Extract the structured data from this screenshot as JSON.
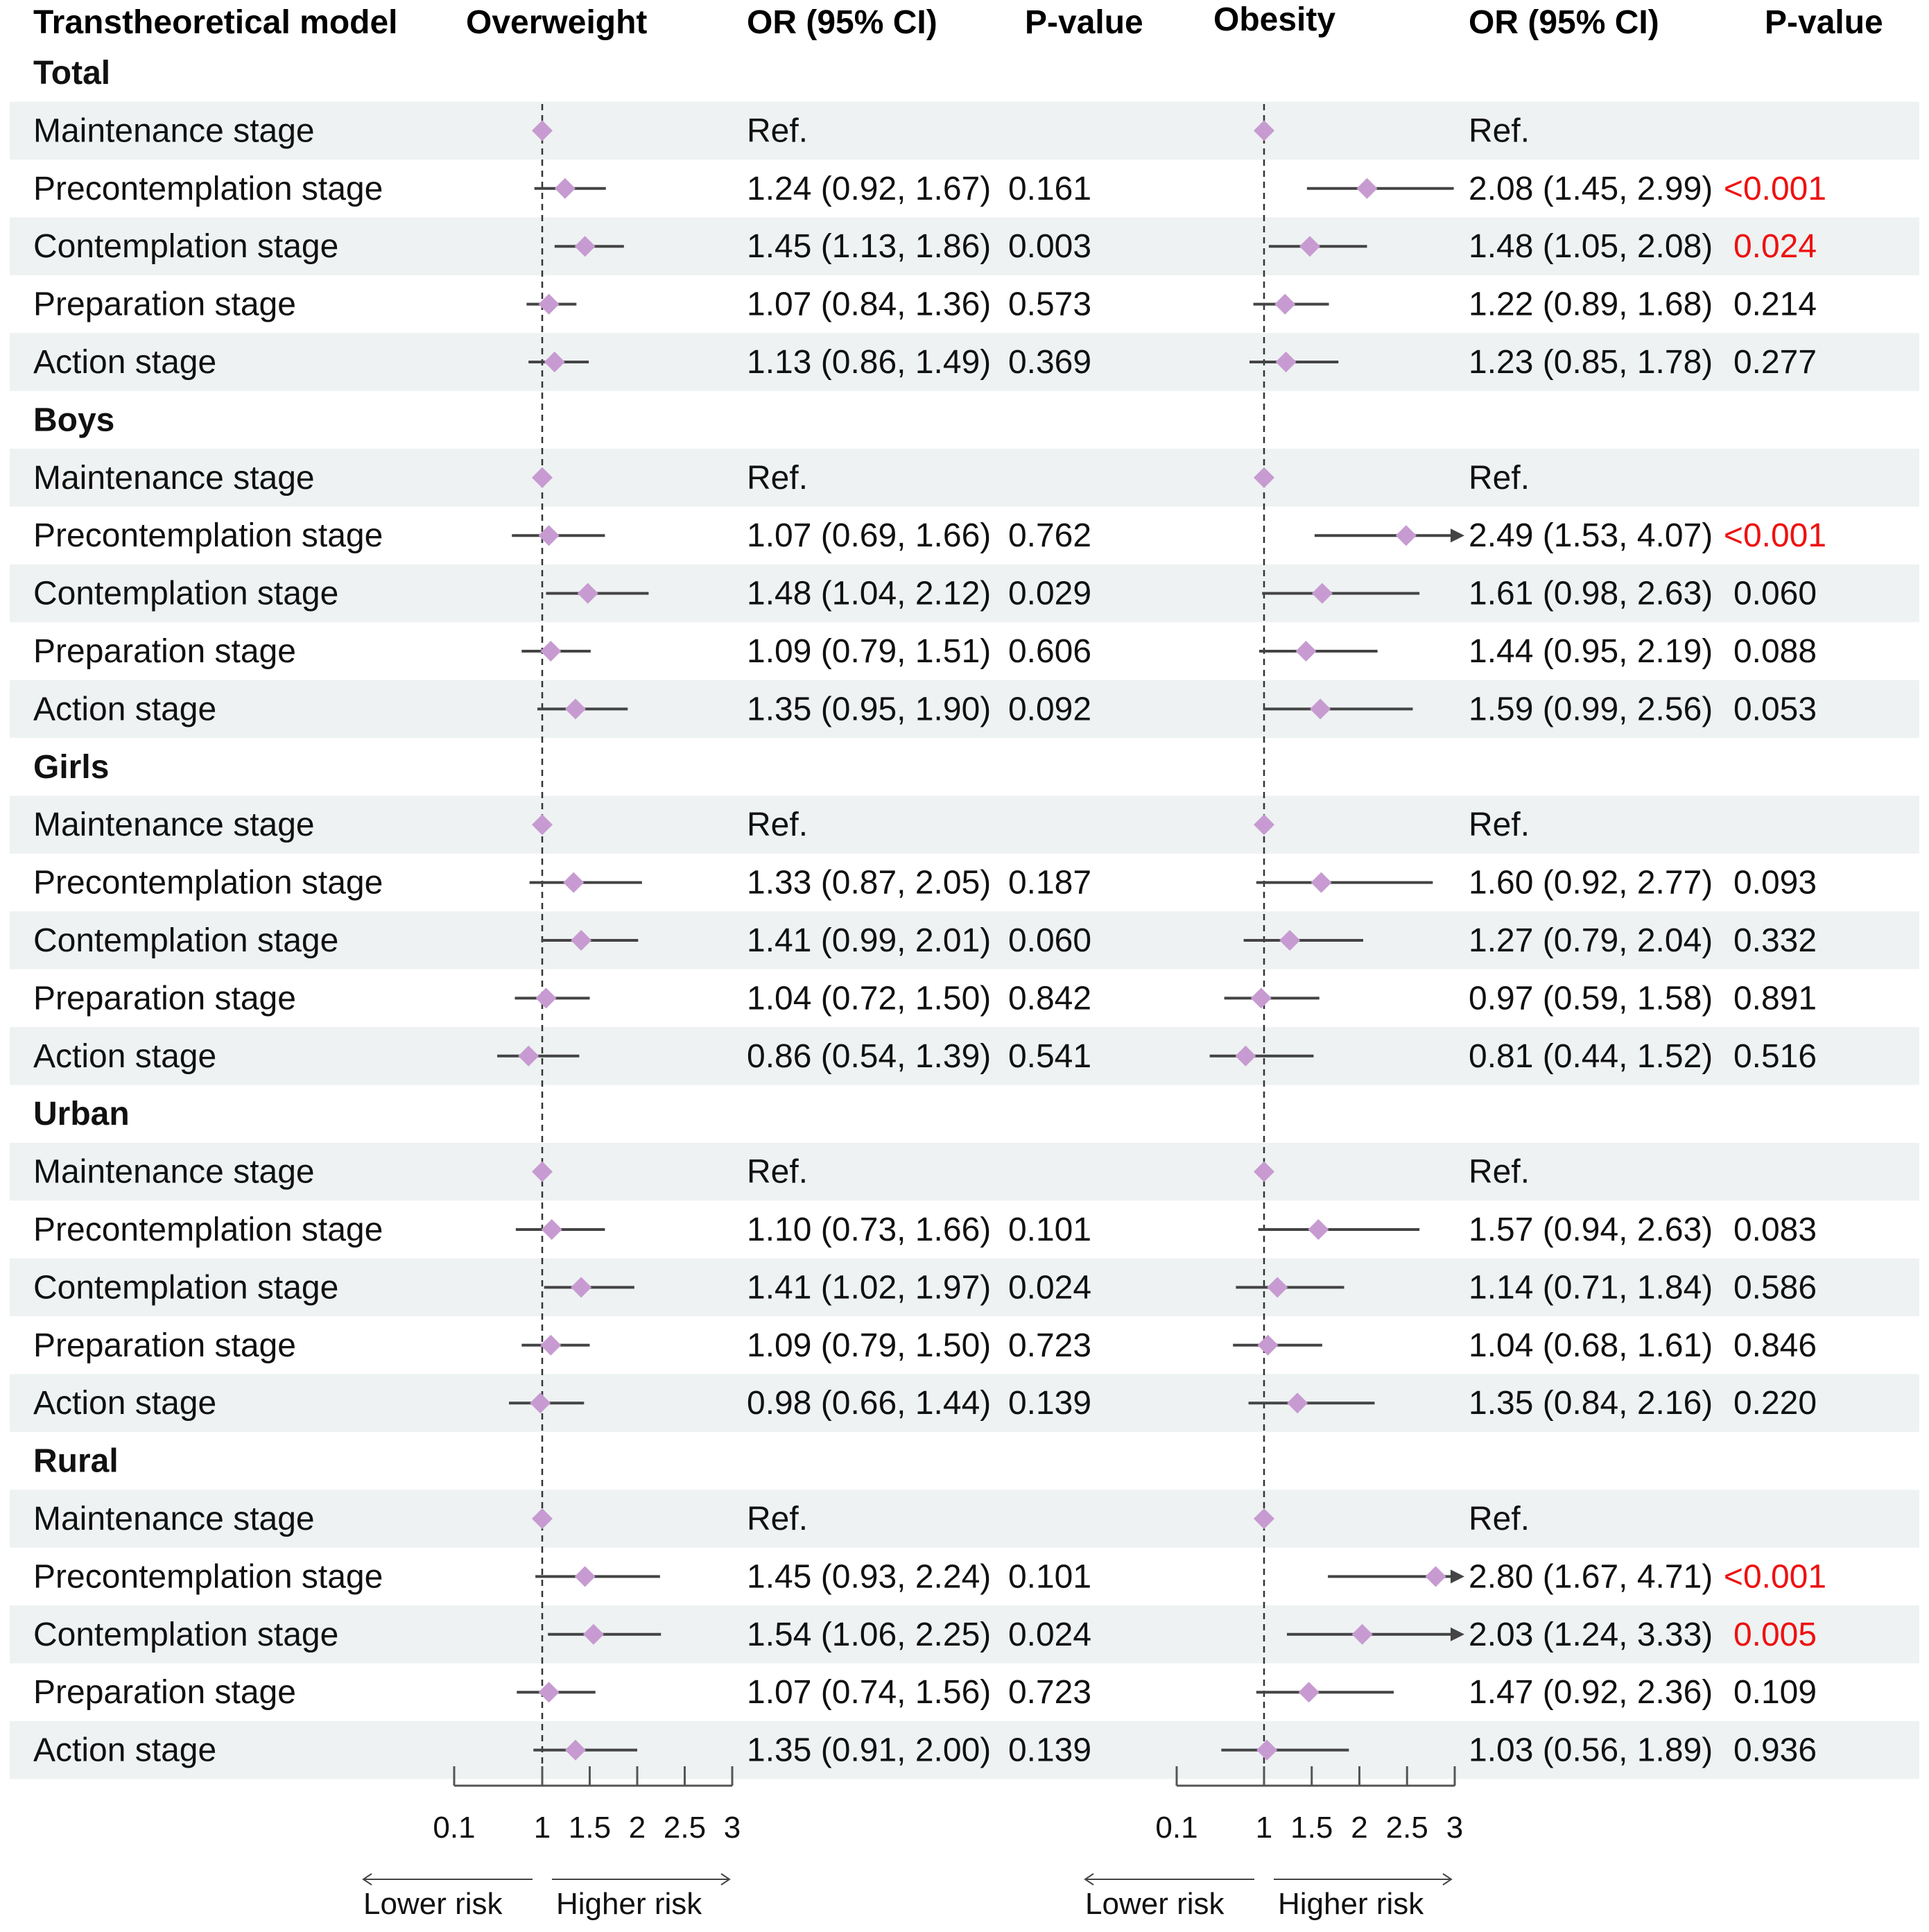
{
  "headers": {
    "model": "Transtheoretical model",
    "overweight": "Overweight",
    "or_ci_1": "OR (95% CI)",
    "pvalue_1": "P-value",
    "obesity": "Obesity",
    "or_ci_2": "OR (95% CI)",
    "pvalue_2": "P-value"
  },
  "colors": {
    "diamond": "#c79bd1",
    "line": "#444444",
    "stripe": "#eef2f2",
    "significant": "#ee1111",
    "text": "#111111"
  },
  "axis": {
    "ticks": [
      0.1,
      1,
      1.5,
      2,
      2.5,
      3
    ],
    "tick_labels": [
      "0.1",
      "1",
      "1.5",
      "2",
      "2.5",
      "3"
    ],
    "reference": 1,
    "lower_label": "Lower risk",
    "higher_label": "Higher risk"
  },
  "chart_data": [
    {
      "type": "forest",
      "title": "Overweight",
      "xlabel": "",
      "reference_line": 1,
      "xlim": [
        0.1,
        3
      ],
      "groups": [
        {
          "name": "Total",
          "rows": [
            {
              "label": "Maintenance stage",
              "or": 1.0,
              "lo": null,
              "hi": null,
              "text": "Ref.",
              "p": ""
            },
            {
              "label": "Precontemplation stage",
              "or": 1.24,
              "lo": 0.92,
              "hi": 1.67,
              "text": "1.24 (0.92, 1.67)",
              "p": "0.161"
            },
            {
              "label": "Contemplation stage",
              "or": 1.45,
              "lo": 1.13,
              "hi": 1.86,
              "text": "1.45 (1.13, 1.86)",
              "p": "0.003"
            },
            {
              "label": "Preparation stage",
              "or": 1.07,
              "lo": 0.84,
              "hi": 1.36,
              "text": "1.07 (0.84, 1.36)",
              "p": "0.573"
            },
            {
              "label": "Action stage",
              "or": 1.13,
              "lo": 0.86,
              "hi": 1.49,
              "text": "1.13 (0.86, 1.49)",
              "p": "0.369"
            }
          ]
        },
        {
          "name": "Boys",
          "rows": [
            {
              "label": "Maintenance stage",
              "or": 1.0,
              "lo": null,
              "hi": null,
              "text": "Ref.",
              "p": ""
            },
            {
              "label": "Precontemplation stage",
              "or": 1.07,
              "lo": 0.69,
              "hi": 1.66,
              "text": "1.07 (0.69, 1.66)",
              "p": "0.762"
            },
            {
              "label": "Contemplation stage",
              "or": 1.48,
              "lo": 1.04,
              "hi": 2.12,
              "text": "1.48 (1.04, 2.12)",
              "p": "0.029"
            },
            {
              "label": "Preparation stage",
              "or": 1.09,
              "lo": 0.79,
              "hi": 1.51,
              "text": "1.09 (0.79, 1.51)",
              "p": "0.606"
            },
            {
              "label": "Action stage",
              "or": 1.35,
              "lo": 0.95,
              "hi": 1.9,
              "text": "1.35 (0.95, 1.90)",
              "p": "0.092"
            }
          ]
        },
        {
          "name": "Girls",
          "rows": [
            {
              "label": "Maintenance stage",
              "or": 1.0,
              "lo": null,
              "hi": null,
              "text": "Ref.",
              "p": ""
            },
            {
              "label": "Precontemplation stage",
              "or": 1.33,
              "lo": 0.87,
              "hi": 2.05,
              "text": "1.33 (0.87, 2.05)",
              "p": "0.187"
            },
            {
              "label": "Contemplation stage",
              "or": 1.41,
              "lo": 0.99,
              "hi": 2.01,
              "text": "1.41 (0.99, 2.01)",
              "p": "0.060"
            },
            {
              "label": "Preparation stage",
              "or": 1.04,
              "lo": 0.72,
              "hi": 1.5,
              "text": "1.04 (0.72, 1.50)",
              "p": "0.842"
            },
            {
              "label": "Action stage",
              "or": 0.86,
              "lo": 0.54,
              "hi": 1.39,
              "text": "0.86 (0.54, 1.39)",
              "p": "0.541"
            }
          ]
        },
        {
          "name": "Urban",
          "rows": [
            {
              "label": "Maintenance stage",
              "or": 1.0,
              "lo": null,
              "hi": null,
              "text": "Ref.",
              "p": ""
            },
            {
              "label": "Precontemplation stage",
              "or": 1.1,
              "lo": 0.73,
              "hi": 1.66,
              "text": "1.10 (0.73, 1.66)",
              "p": "0.101"
            },
            {
              "label": "Contemplation stage",
              "or": 1.41,
              "lo": 1.02,
              "hi": 1.97,
              "text": "1.41 (1.02, 1.97)",
              "p": "0.024"
            },
            {
              "label": "Preparation stage",
              "or": 1.09,
              "lo": 0.79,
              "hi": 1.5,
              "text": "1.09 (0.79, 1.50)",
              "p": "0.723"
            },
            {
              "label": "Action stage",
              "or": 0.98,
              "lo": 0.66,
              "hi": 1.44,
              "text": "0.98 (0.66, 1.44)",
              "p": "0.139"
            }
          ]
        },
        {
          "name": "Rural",
          "rows": [
            {
              "label": "Maintenance stage",
              "or": 1.0,
              "lo": null,
              "hi": null,
              "text": "Ref.",
              "p": ""
            },
            {
              "label": "Precontemplation stage",
              "or": 1.45,
              "lo": 0.93,
              "hi": 2.24,
              "text": "1.45 (0.93, 2.24)",
              "p": "0.101"
            },
            {
              "label": "Contemplation stage",
              "or": 1.54,
              "lo": 1.06,
              "hi": 2.25,
              "text": "1.54 (1.06, 2.25)",
              "p": "0.024"
            },
            {
              "label": "Preparation stage",
              "or": 1.07,
              "lo": 0.74,
              "hi": 1.56,
              "text": "1.07 (0.74, 1.56)",
              "p": "0.723"
            },
            {
              "label": "Action stage",
              "or": 1.35,
              "lo": 0.91,
              "hi": 2.0,
              "text": "1.35 (0.91, 2.00)",
              "p": "0.139"
            }
          ]
        }
      ]
    },
    {
      "type": "forest",
      "title": "Obesity",
      "xlabel": "",
      "reference_line": 1,
      "xlim": [
        0.1,
        3
      ],
      "groups": [
        {
          "name": "Total",
          "rows": [
            {
              "label": "Maintenance stage",
              "or": 1.0,
              "lo": null,
              "hi": null,
              "text": "Ref.",
              "p": ""
            },
            {
              "label": "Precontemplation stage",
              "or": 2.08,
              "lo": 1.45,
              "hi": 2.99,
              "text": "2.08 (1.45, 2.99)",
              "p": "<0.001",
              "sig": true
            },
            {
              "label": "Contemplation stage",
              "or": 1.48,
              "lo": 1.05,
              "hi": 2.08,
              "text": "1.48 (1.05, 2.08)",
              "p": "0.024",
              "sig": true
            },
            {
              "label": "Preparation stage",
              "or": 1.22,
              "lo": 0.89,
              "hi": 1.68,
              "text": "1.22 (0.89, 1.68)",
              "p": "0.214"
            },
            {
              "label": "Action stage",
              "or": 1.23,
              "lo": 0.85,
              "hi": 1.78,
              "text": "1.23 (0.85, 1.78)",
              "p": "0.277"
            }
          ]
        },
        {
          "name": "Boys",
          "rows": [
            {
              "label": "Maintenance stage",
              "or": 1.0,
              "lo": null,
              "hi": null,
              "text": "Ref.",
              "p": ""
            },
            {
              "label": "Precontemplation stage",
              "or": 2.49,
              "lo": 1.53,
              "hi": 4.07,
              "text": "2.49 (1.53, 4.07)",
              "p": "<0.001",
              "sig": true
            },
            {
              "label": "Contemplation stage",
              "or": 1.61,
              "lo": 0.98,
              "hi": 2.63,
              "text": "1.61 (0.98, 2.63)",
              "p": "0.060"
            },
            {
              "label": "Preparation stage",
              "or": 1.44,
              "lo": 0.95,
              "hi": 2.19,
              "text": "1.44 (0.95, 2.19)",
              "p": "0.088"
            },
            {
              "label": "Action stage",
              "or": 1.59,
              "lo": 0.99,
              "hi": 2.56,
              "text": "1.59 (0.99, 2.56)",
              "p": "0.053"
            }
          ]
        },
        {
          "name": "Girls",
          "rows": [
            {
              "label": "Maintenance stage",
              "or": 1.0,
              "lo": null,
              "hi": null,
              "text": "Ref.",
              "p": ""
            },
            {
              "label": "Precontemplation stage",
              "or": 1.6,
              "lo": 0.92,
              "hi": 2.77,
              "text": "1.60 (0.92, 2.77)",
              "p": "0.093"
            },
            {
              "label": "Contemplation stage",
              "or": 1.27,
              "lo": 0.79,
              "hi": 2.04,
              "text": "1.27 (0.79, 2.04)",
              "p": "0.332"
            },
            {
              "label": "Preparation stage",
              "or": 0.97,
              "lo": 0.59,
              "hi": 1.58,
              "text": "0.97 (0.59, 1.58)",
              "p": "0.891"
            },
            {
              "label": "Action stage",
              "or": 0.81,
              "lo": 0.44,
              "hi": 1.52,
              "text": "0.81 (0.44, 1.52)",
              "p": "0.516"
            }
          ]
        },
        {
          "name": "Urban",
          "rows": [
            {
              "label": "Maintenance stage",
              "or": 1.0,
              "lo": null,
              "hi": null,
              "text": "Ref.",
              "p": ""
            },
            {
              "label": "Precontemplation stage",
              "or": 1.57,
              "lo": 0.94,
              "hi": 2.63,
              "text": "1.57 (0.94, 2.63)",
              "p": "0.083"
            },
            {
              "label": "Contemplation stage",
              "or": 1.14,
              "lo": 0.71,
              "hi": 1.84,
              "text": "1.14 (0.71, 1.84)",
              "p": "0.586"
            },
            {
              "label": "Preparation stage",
              "or": 1.04,
              "lo": 0.68,
              "hi": 1.61,
              "text": "1.04 (0.68, 1.61)",
              "p": "0.846"
            },
            {
              "label": "Action stage",
              "or": 1.35,
              "lo": 0.84,
              "hi": 2.16,
              "text": "1.35 (0.84, 2.16)",
              "p": "0.220"
            }
          ]
        },
        {
          "name": "Rural",
          "rows": [
            {
              "label": "Maintenance stage",
              "or": 1.0,
              "lo": null,
              "hi": null,
              "text": "Ref.",
              "p": ""
            },
            {
              "label": "Precontemplation stage",
              "or": 2.8,
              "lo": 1.67,
              "hi": 4.71,
              "text": "2.80 (1.67, 4.71)",
              "p": "<0.001",
              "sig": true
            },
            {
              "label": "Contemplation stage",
              "or": 2.03,
              "lo": 1.24,
              "hi": 3.33,
              "text": "2.03 (1.24, 3.33)",
              "p": "0.005",
              "sig": true
            },
            {
              "label": "Preparation stage",
              "or": 1.47,
              "lo": 0.92,
              "hi": 2.36,
              "text": "1.47 (0.92, 2.36)",
              "p": "0.109"
            },
            {
              "label": "Action stage",
              "or": 1.03,
              "lo": 0.56,
              "hi": 1.89,
              "text": "1.03 (0.56, 1.89)",
              "p": "0.936"
            }
          ]
        }
      ]
    }
  ]
}
